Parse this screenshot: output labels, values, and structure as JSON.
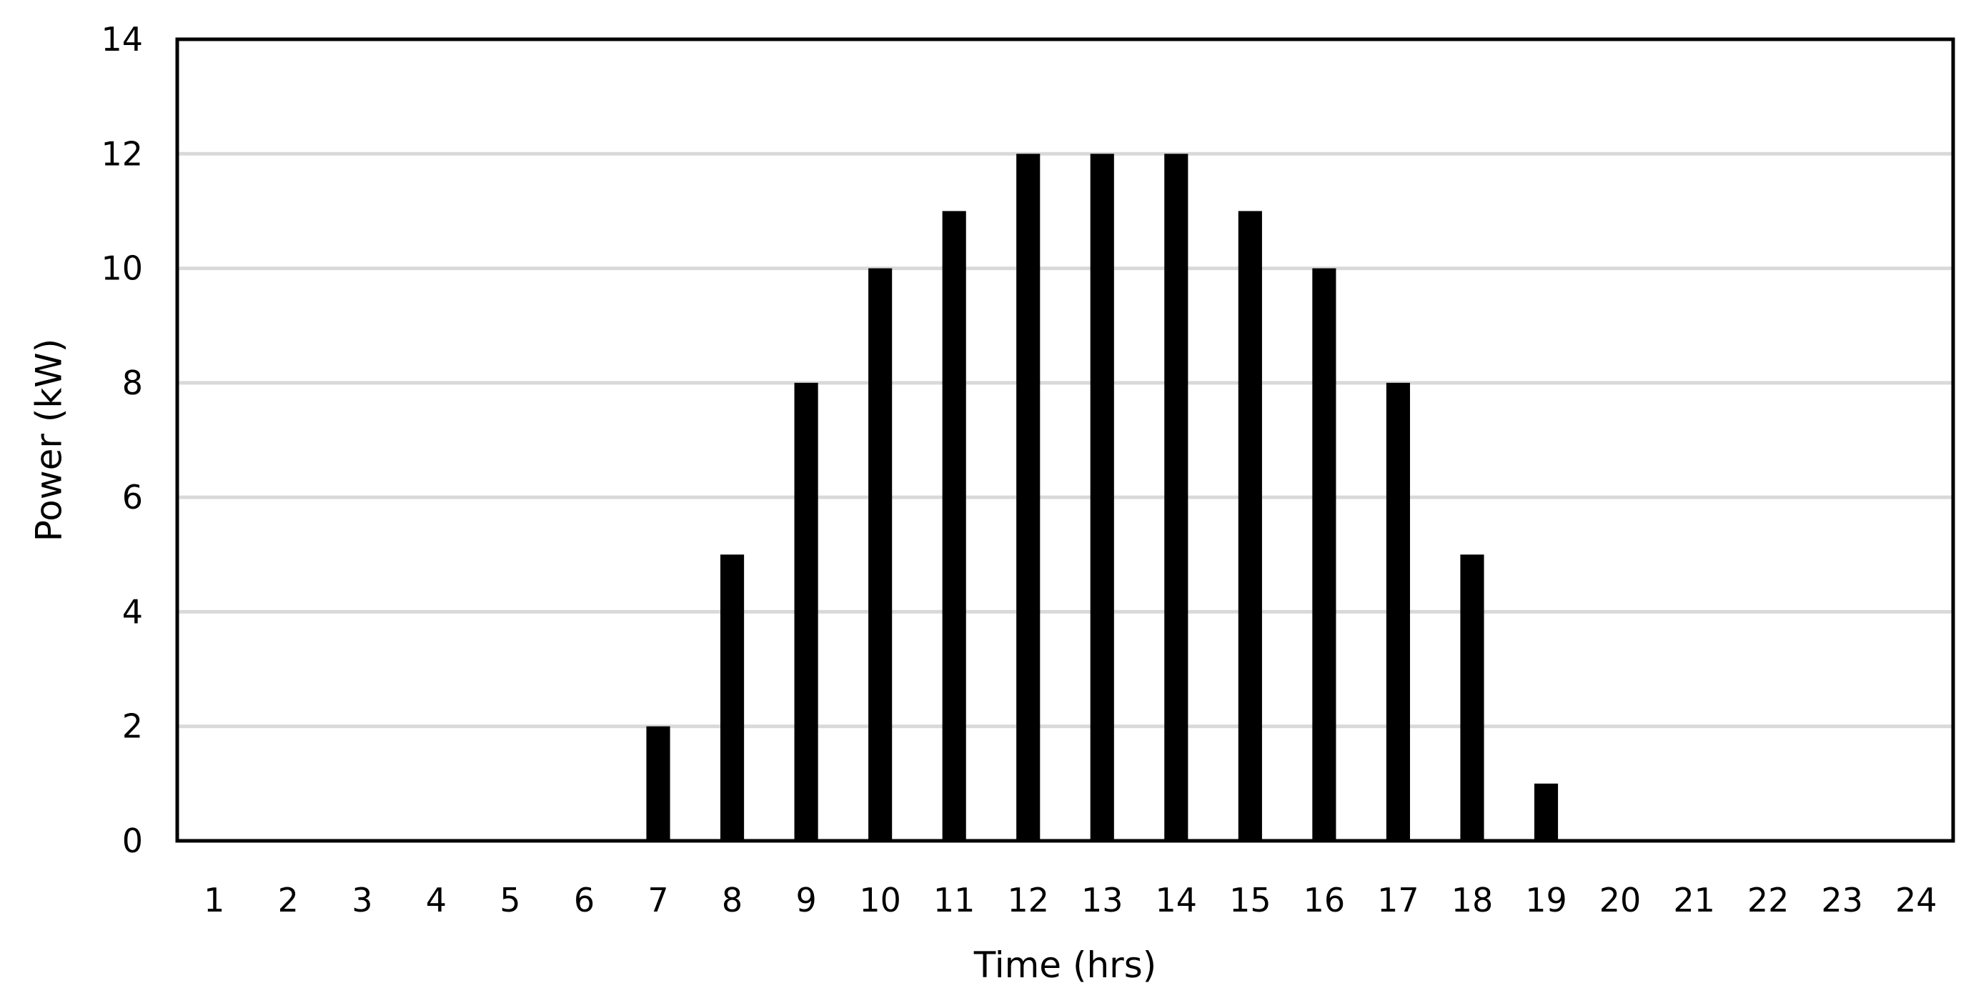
{
  "chart_data": {
    "type": "bar",
    "title": "",
    "xlabel": "Time (hrs)",
    "ylabel": "Power (kW)",
    "ylim": [
      0,
      14
    ],
    "yticks": [
      0,
      2,
      4,
      6,
      8,
      10,
      12,
      14
    ],
    "grid": true,
    "legend": "none",
    "bar_color": "#000000",
    "categories": [
      "1",
      "2",
      "3",
      "4",
      "5",
      "6",
      "7",
      "8",
      "9",
      "10",
      "11",
      "12",
      "13",
      "14",
      "15",
      "16",
      "17",
      "18",
      "19",
      "20",
      "21",
      "22",
      "23",
      "24"
    ],
    "values": [
      0,
      0,
      0,
      0,
      0,
      0,
      2,
      5,
      8,
      10,
      11,
      12,
      12,
      12,
      11,
      10,
      8,
      5,
      1,
      0,
      0,
      0,
      0,
      0
    ]
  }
}
